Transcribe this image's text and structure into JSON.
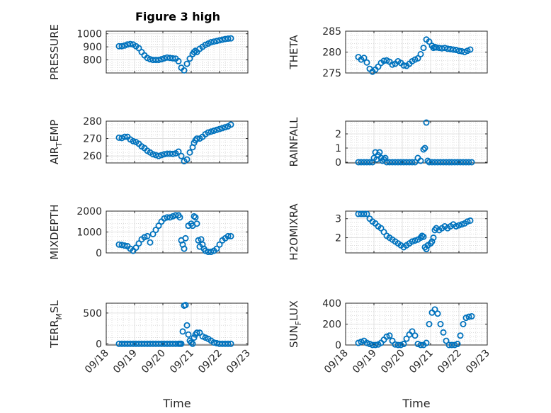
{
  "figure": {
    "title": "Figure 3 high"
  },
  "style": {
    "marker_color": "#0072BD",
    "axis_color": "#262626",
    "grid_color": "#c8c8c8"
  },
  "chart_data": [
    {
      "type": "scatter",
      "ylabel": "PRESSURE",
      "ylabel_sub": "",
      "ylabel_tail": "",
      "xlim": [
        0,
        5
      ],
      "ylim": [
        700,
        1020
      ],
      "yticks": [
        800,
        900,
        1000
      ],
      "x": [
        0.45,
        0.55,
        0.65,
        0.75,
        0.85,
        0.95,
        1.05,
        1.15,
        1.25,
        1.35,
        1.45,
        1.55,
        1.65,
        1.75,
        1.85,
        1.95,
        2.05,
        2.15,
        2.25,
        2.35,
        2.45,
        2.55,
        2.65,
        2.75,
        2.85,
        2.95,
        3.05,
        3.1,
        3.15,
        3.2,
        3.3,
        3.4,
        3.5,
        3.6,
        3.7,
        3.8,
        3.9,
        4.0,
        4.1,
        4.2,
        4.3,
        4.4
      ],
      "y": [
        905,
        905,
        910,
        918,
        922,
        918,
        905,
        890,
        860,
        835,
        815,
        805,
        800,
        800,
        800,
        805,
        812,
        818,
        815,
        812,
        810,
        790,
        740,
        720,
        770,
        810,
        845,
        860,
        870,
        860,
        885,
        900,
        915,
        925,
        935,
        940,
        945,
        950,
        955,
        960,
        963,
        965
      ]
    },
    {
      "type": "scatter",
      "ylabel": "THETA",
      "ylabel_sub": "",
      "ylabel_tail": "",
      "xlim": [
        0,
        5
      ],
      "ylim": [
        275,
        285
      ],
      "yticks": [
        275,
        280,
        285
      ],
      "x": [
        0.45,
        0.55,
        0.65,
        0.75,
        0.85,
        0.95,
        1.05,
        1.15,
        1.25,
        1.35,
        1.45,
        1.55,
        1.65,
        1.75,
        1.85,
        1.95,
        2.05,
        2.15,
        2.25,
        2.35,
        2.45,
        2.55,
        2.65,
        2.75,
        2.85,
        2.95,
        3.05,
        3.1,
        3.15,
        3.2,
        3.3,
        3.4,
        3.5,
        3.6,
        3.7,
        3.8,
        3.9,
        4.0,
        4.1,
        4.2,
        4.3,
        4.4
      ],
      "y": [
        278.8,
        278.2,
        278.6,
        277.5,
        276,
        275.3,
        275.8,
        276.5,
        277.4,
        277.9,
        278,
        277.7,
        277,
        277.2,
        277.8,
        277.4,
        276.8,
        276.7,
        277.2,
        277.8,
        278.2,
        278.5,
        279.5,
        281,
        283,
        282.5,
        281.5,
        281,
        281.2,
        281.1,
        281,
        280.9,
        281,
        280.8,
        280.7,
        280.6,
        280.5,
        280.3,
        280.2,
        280,
        280.3,
        280.6
      ]
    },
    {
      "type": "scatter",
      "ylabel": "AIR",
      "ylabel_sub": "T",
      "ylabel_tail": "EMP",
      "xlim": [
        0,
        5
      ],
      "ylim": [
        256,
        280
      ],
      "yticks": [
        260,
        270,
        280
      ],
      "x": [
        0.45,
        0.55,
        0.65,
        0.75,
        0.85,
        0.95,
        1.05,
        1.15,
        1.25,
        1.35,
        1.45,
        1.55,
        1.65,
        1.75,
        1.85,
        1.95,
        2.05,
        2.15,
        2.25,
        2.35,
        2.45,
        2.55,
        2.65,
        2.75,
        2.85,
        2.95,
        3.05,
        3.1,
        3.15,
        3.2,
        3.3,
        3.4,
        3.5,
        3.6,
        3.7,
        3.8,
        3.9,
        4.0,
        4.1,
        4.2,
        4.3,
        4.4
      ],
      "y": [
        270.5,
        270.3,
        271,
        271,
        269.5,
        268.5,
        268,
        267,
        265.5,
        264.5,
        263,
        262,
        261,
        260.5,
        260,
        260.5,
        261,
        261.3,
        261.3,
        261.2,
        261.5,
        262.5,
        260,
        257,
        258,
        262,
        265,
        267.5,
        269,
        270,
        270,
        271,
        272.5,
        273.5,
        274,
        274.5,
        275,
        275.5,
        276,
        276.5,
        277,
        278
      ]
    },
    {
      "type": "scatter",
      "ylabel": "RAINFALL",
      "ylabel_sub": "",
      "ylabel_tail": "",
      "xlim": [
        0,
        5
      ],
      "ylim": [
        -0.05,
        2.9
      ],
      "yticks": [
        0,
        1,
        2
      ],
      "x": [
        0.45,
        0.55,
        0.65,
        0.75,
        0.85,
        0.95,
        1.0,
        1.05,
        1.1,
        1.15,
        1.2,
        1.25,
        1.3,
        1.35,
        1.4,
        1.45,
        1.55,
        1.65,
        1.75,
        1.85,
        1.95,
        2.05,
        2.15,
        2.25,
        2.35,
        2.45,
        2.55,
        2.65,
        2.75,
        2.8,
        2.85,
        2.9,
        2.95,
        3.05,
        3.15,
        3.25,
        3.35,
        3.45,
        3.55,
        3.65,
        3.75,
        3.85,
        3.95,
        4.05,
        4.15,
        4.25,
        4.35,
        4.45
      ],
      "y": [
        0,
        0,
        0,
        0,
        0,
        0,
        0.3,
        0.7,
        0.2,
        0.5,
        0.7,
        0.3,
        0.1,
        0.2,
        0.3,
        0,
        0,
        0,
        0,
        0,
        0,
        0,
        0,
        0,
        0,
        0,
        0.3,
        0.1,
        0.9,
        1.0,
        2.8,
        0.1,
        0,
        0,
        0,
        0,
        0,
        0,
        0,
        0,
        0,
        0,
        0,
        0,
        0,
        0,
        0,
        0
      ]
    },
    {
      "type": "scatter",
      "ylabel": "MIXDEPTH",
      "ylabel_sub": "",
      "ylabel_tail": "",
      "xlim": [
        0,
        5
      ],
      "ylim": [
        0,
        2000
      ],
      "yticks": [
        0,
        1000,
        2000
      ],
      "x": [
        0.45,
        0.55,
        0.65,
        0.75,
        0.85,
        0.95,
        1.05,
        1.15,
        1.25,
        1.35,
        1.45,
        1.55,
        1.65,
        1.75,
        1.85,
        1.95,
        2.05,
        2.15,
        2.25,
        2.35,
        2.45,
        2.55,
        2.6,
        2.65,
        2.7,
        2.75,
        2.8,
        2.9,
        3.0,
        3.05,
        3.1,
        3.15,
        3.2,
        3.25,
        3.3,
        3.35,
        3.4,
        3.45,
        3.5,
        3.6,
        3.7,
        3.8,
        3.9,
        4.0,
        4.1,
        4.2,
        4.3,
        4.4
      ],
      "y": [
        400,
        380,
        350,
        320,
        200,
        100,
        250,
        450,
        650,
        750,
        800,
        500,
        900,
        1100,
        1300,
        1500,
        1650,
        1700,
        1700,
        1750,
        1800,
        1800,
        1700,
        600,
        400,
        200,
        700,
        1300,
        1400,
        1300,
        1750,
        1700,
        1400,
        600,
        300,
        650,
        400,
        200,
        100,
        50,
        50,
        100,
        200,
        400,
        600,
        700,
        800,
        800
      ]
    },
    {
      "type": "scatter",
      "ylabel": "H2OMIXRA",
      "ylabel_sub": "",
      "ylabel_tail": "",
      "xlim": [
        0,
        5
      ],
      "ylim": [
        1.2,
        3.4
      ],
      "yticks": [
        2,
        3
      ],
      "x": [
        0.45,
        0.55,
        0.65,
        0.75,
        0.85,
        0.95,
        1.05,
        1.15,
        1.25,
        1.35,
        1.45,
        1.55,
        1.65,
        1.75,
        1.85,
        1.95,
        2.05,
        2.15,
        2.25,
        2.35,
        2.45,
        2.55,
        2.65,
        2.7,
        2.75,
        2.8,
        2.85,
        2.9,
        3.0,
        3.05,
        3.1,
        3.15,
        3.2,
        3.3,
        3.4,
        3.5,
        3.6,
        3.7,
        3.8,
        3.9,
        4.0,
        4.1,
        4.2,
        4.3,
        4.4
      ],
      "y": [
        3.25,
        3.25,
        3.25,
        3.25,
        3.0,
        2.85,
        2.75,
        2.6,
        2.5,
        2.3,
        2.1,
        2.0,
        1.9,
        1.8,
        1.7,
        1.6,
        1.5,
        1.6,
        1.7,
        1.8,
        1.85,
        1.9,
        2.0,
        2.1,
        2.05,
        1.5,
        1.4,
        1.6,
        1.7,
        1.8,
        2.0,
        2.4,
        2.5,
        2.4,
        2.5,
        2.6,
        2.5,
        2.6,
        2.7,
        2.6,
        2.65,
        2.7,
        2.75,
        2.85,
        2.9
      ]
    },
    {
      "type": "scatter",
      "ylabel": "TERR",
      "ylabel_sub": "M",
      "ylabel_tail": "SL",
      "xlim": [
        0,
        5
      ],
      "ylim": [
        -20,
        660
      ],
      "yticks": [
        0,
        500
      ],
      "x": [
        0.45,
        0.55,
        0.65,
        0.75,
        0.85,
        0.95,
        1.05,
        1.15,
        1.25,
        1.35,
        1.45,
        1.55,
        1.65,
        1.75,
        1.85,
        1.95,
        2.05,
        2.15,
        2.25,
        2.35,
        2.45,
        2.55,
        2.6,
        2.65,
        2.7,
        2.75,
        2.8,
        2.85,
        2.9,
        2.95,
        3.0,
        3.05,
        3.1,
        3.15,
        3.2,
        3.3,
        3.4,
        3.5,
        3.6,
        3.7,
        3.8,
        3.9,
        4.0,
        4.1,
        4.2,
        4.3,
        4.4
      ],
      "y": [
        0,
        0,
        0,
        0,
        0,
        0,
        0,
        0,
        0,
        0,
        0,
        0,
        0,
        0,
        0,
        0,
        0,
        0,
        0,
        0,
        0,
        0,
        0,
        0,
        200,
        620,
        630,
        300,
        150,
        50,
        20,
        0,
        100,
        150,
        180,
        180,
        120,
        100,
        80,
        50,
        20,
        10,
        0,
        0,
        0,
        0,
        0
      ]
    },
    {
      "type": "scatter",
      "ylabel": "SUN",
      "ylabel_sub": "F",
      "ylabel_tail": "LUX",
      "xlim": [
        0,
        5
      ],
      "ylim": [
        0,
        400
      ],
      "yticks": [
        0,
        200,
        400
      ],
      "x": [
        0.45,
        0.55,
        0.65,
        0.75,
        0.85,
        0.95,
        1.05,
        1.15,
        1.25,
        1.35,
        1.45,
        1.55,
        1.65,
        1.75,
        1.85,
        1.95,
        2.05,
        2.15,
        2.25,
        2.35,
        2.45,
        2.55,
        2.65,
        2.75,
        2.85,
        2.95,
        3.05,
        3.15,
        3.25,
        3.35,
        3.45,
        3.55,
        3.65,
        3.75,
        3.85,
        3.95,
        4.05,
        4.15,
        4.25,
        4.35,
        4.45
      ],
      "y": [
        20,
        30,
        40,
        20,
        10,
        0,
        0,
        5,
        20,
        50,
        80,
        90,
        40,
        5,
        0,
        0,
        10,
        60,
        100,
        130,
        90,
        10,
        0,
        0,
        20,
        200,
        310,
        340,
        300,
        200,
        120,
        40,
        0,
        0,
        0,
        10,
        90,
        200,
        260,
        270,
        275
      ]
    }
  ],
  "xaxis": {
    "xlabel": "Time",
    "xticks": [
      0,
      1,
      2,
      3,
      4,
      5
    ],
    "xticklabels": [
      "09/18",
      "09/19",
      "09/20",
      "09/21",
      "09/22",
      "09/23"
    ]
  }
}
